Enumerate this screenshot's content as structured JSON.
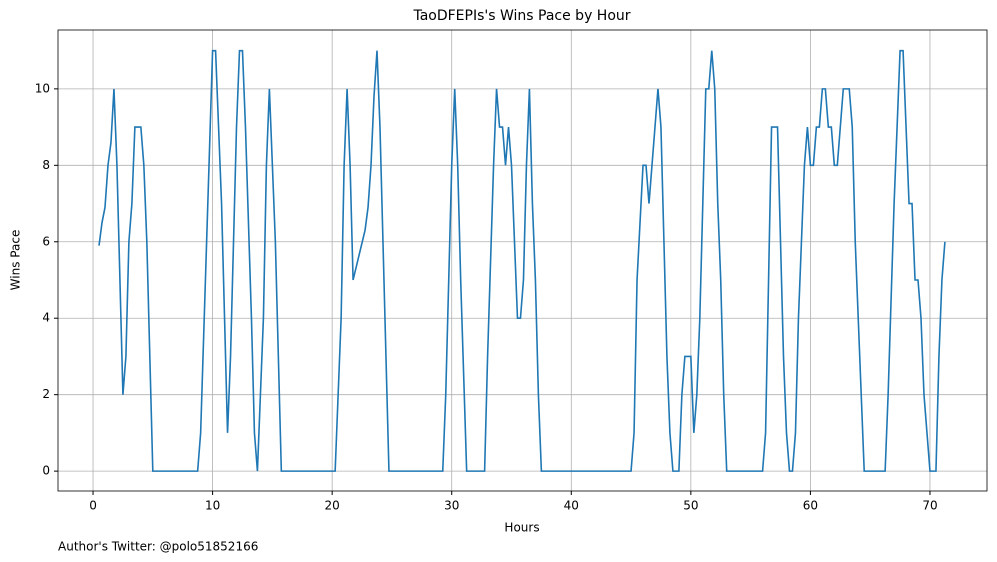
{
  "chart_data": {
    "type": "line",
    "title": "TaoDFEPIs's Wins Pace by Hour",
    "x_label": "Hours",
    "y_label": "Wins Pace",
    "footnote": "Author's Twitter: @polo51852166",
    "x": [
      0.5,
      0.75,
      1.0,
      1.25,
      1.5,
      1.75,
      2.0,
      2.5,
      2.75,
      3.0,
      3.25,
      3.5,
      4.0,
      4.25,
      4.5,
      5.0,
      8.75,
      9.0,
      9.5,
      10.0,
      10.25,
      10.75,
      11.25,
      11.5,
      12.0,
      12.25,
      12.5,
      12.75,
      13.25,
      13.5,
      13.75,
      14.0,
      14.25,
      14.5,
      14.75,
      15.0,
      15.25,
      15.75,
      20.25,
      20.75,
      21.0,
      21.25,
      21.5,
      21.75,
      22.75,
      23.0,
      23.25,
      23.5,
      23.75,
      24.0,
      24.25,
      24.75,
      29.25,
      29.5,
      30.0,
      30.25,
      30.5,
      30.75,
      31.25,
      32.75,
      33.0,
      33.5,
      33.75,
      34.0,
      34.25,
      34.5,
      34.75,
      35.0,
      35.5,
      35.75,
      36.0,
      36.25,
      36.5,
      36.75,
      37.0,
      37.25,
      37.5,
      45.0,
      45.25,
      45.5,
      46.0,
      46.25,
      46.5,
      46.75,
      47.0,
      47.25,
      47.5,
      47.75,
      48.0,
      48.25,
      48.5,
      49.0,
      49.25,
      49.5,
      50.0,
      50.25,
      50.5,
      50.75,
      51.25,
      51.5,
      51.75,
      52.0,
      52.25,
      52.5,
      52.75,
      53.0,
      56.0,
      56.25,
      56.5,
      56.75,
      57.25,
      57.5,
      57.75,
      58.0,
      58.25,
      58.5,
      58.75,
      59.0,
      59.25,
      59.5,
      59.75,
      60.0,
      60.25,
      60.5,
      60.75,
      61.0,
      61.25,
      61.5,
      61.75,
      62.0,
      62.25,
      62.5,
      62.75,
      63.25,
      63.5,
      63.75,
      64.0,
      64.25,
      64.5,
      66.25,
      66.5,
      67.0,
      67.25,
      67.5,
      67.75,
      68.0,
      68.25,
      68.5,
      68.75,
      69.0,
      69.25,
      69.5,
      69.75,
      70.0,
      70.5,
      70.75,
      71.0,
      71.25
    ],
    "series": [
      {
        "name": "Wins Pace",
        "color": "#1f77b4",
        "values": [
          5.9,
          6.5,
          6.9,
          8,
          8.6,
          10,
          8,
          2,
          3,
          6,
          7,
          9,
          9,
          8,
          6,
          0,
          0,
          1,
          6,
          11,
          11,
          7,
          1,
          3,
          9,
          11,
          11,
          9,
          4,
          1,
          0,
          2,
          4,
          8,
          10,
          8,
          6,
          0,
          0,
          4,
          8,
          10,
          8,
          5,
          6.3,
          6.9,
          8,
          9.8,
          11,
          9,
          6,
          0,
          0,
          2,
          8,
          10,
          8,
          5,
          0,
          0,
          3,
          8,
          10,
          9,
          9,
          8,
          9,
          8,
          4,
          4,
          5,
          8,
          10,
          7,
          5,
          2,
          0,
          0,
          1,
          5,
          8,
          8,
          7,
          8,
          9,
          10,
          9,
          6,
          3,
          1,
          0,
          0,
          2,
          3,
          3,
          1,
          2,
          4,
          10,
          10,
          11,
          10,
          7,
          5,
          2,
          0,
          0,
          1,
          5,
          9,
          9,
          6,
          3,
          1,
          0,
          0,
          1,
          4,
          6,
          8,
          9,
          8,
          8,
          9,
          9,
          10,
          10,
          9,
          9,
          8,
          8,
          9,
          10,
          10,
          9,
          6,
          4,
          2,
          0,
          0,
          2,
          7,
          9,
          11,
          11,
          9,
          7,
          7,
          5,
          5,
          4,
          2,
          1,
          0,
          0,
          3,
          5,
          6
        ]
      }
    ],
    "xlim": [
      -2.93,
      74.77
    ],
    "ylim": [
      -0.52,
      11.54
    ],
    "xticks": [
      0,
      10,
      20,
      30,
      40,
      50,
      60,
      70
    ],
    "yticks": [
      0,
      2,
      4,
      6,
      8,
      10
    ],
    "grid": true
  }
}
